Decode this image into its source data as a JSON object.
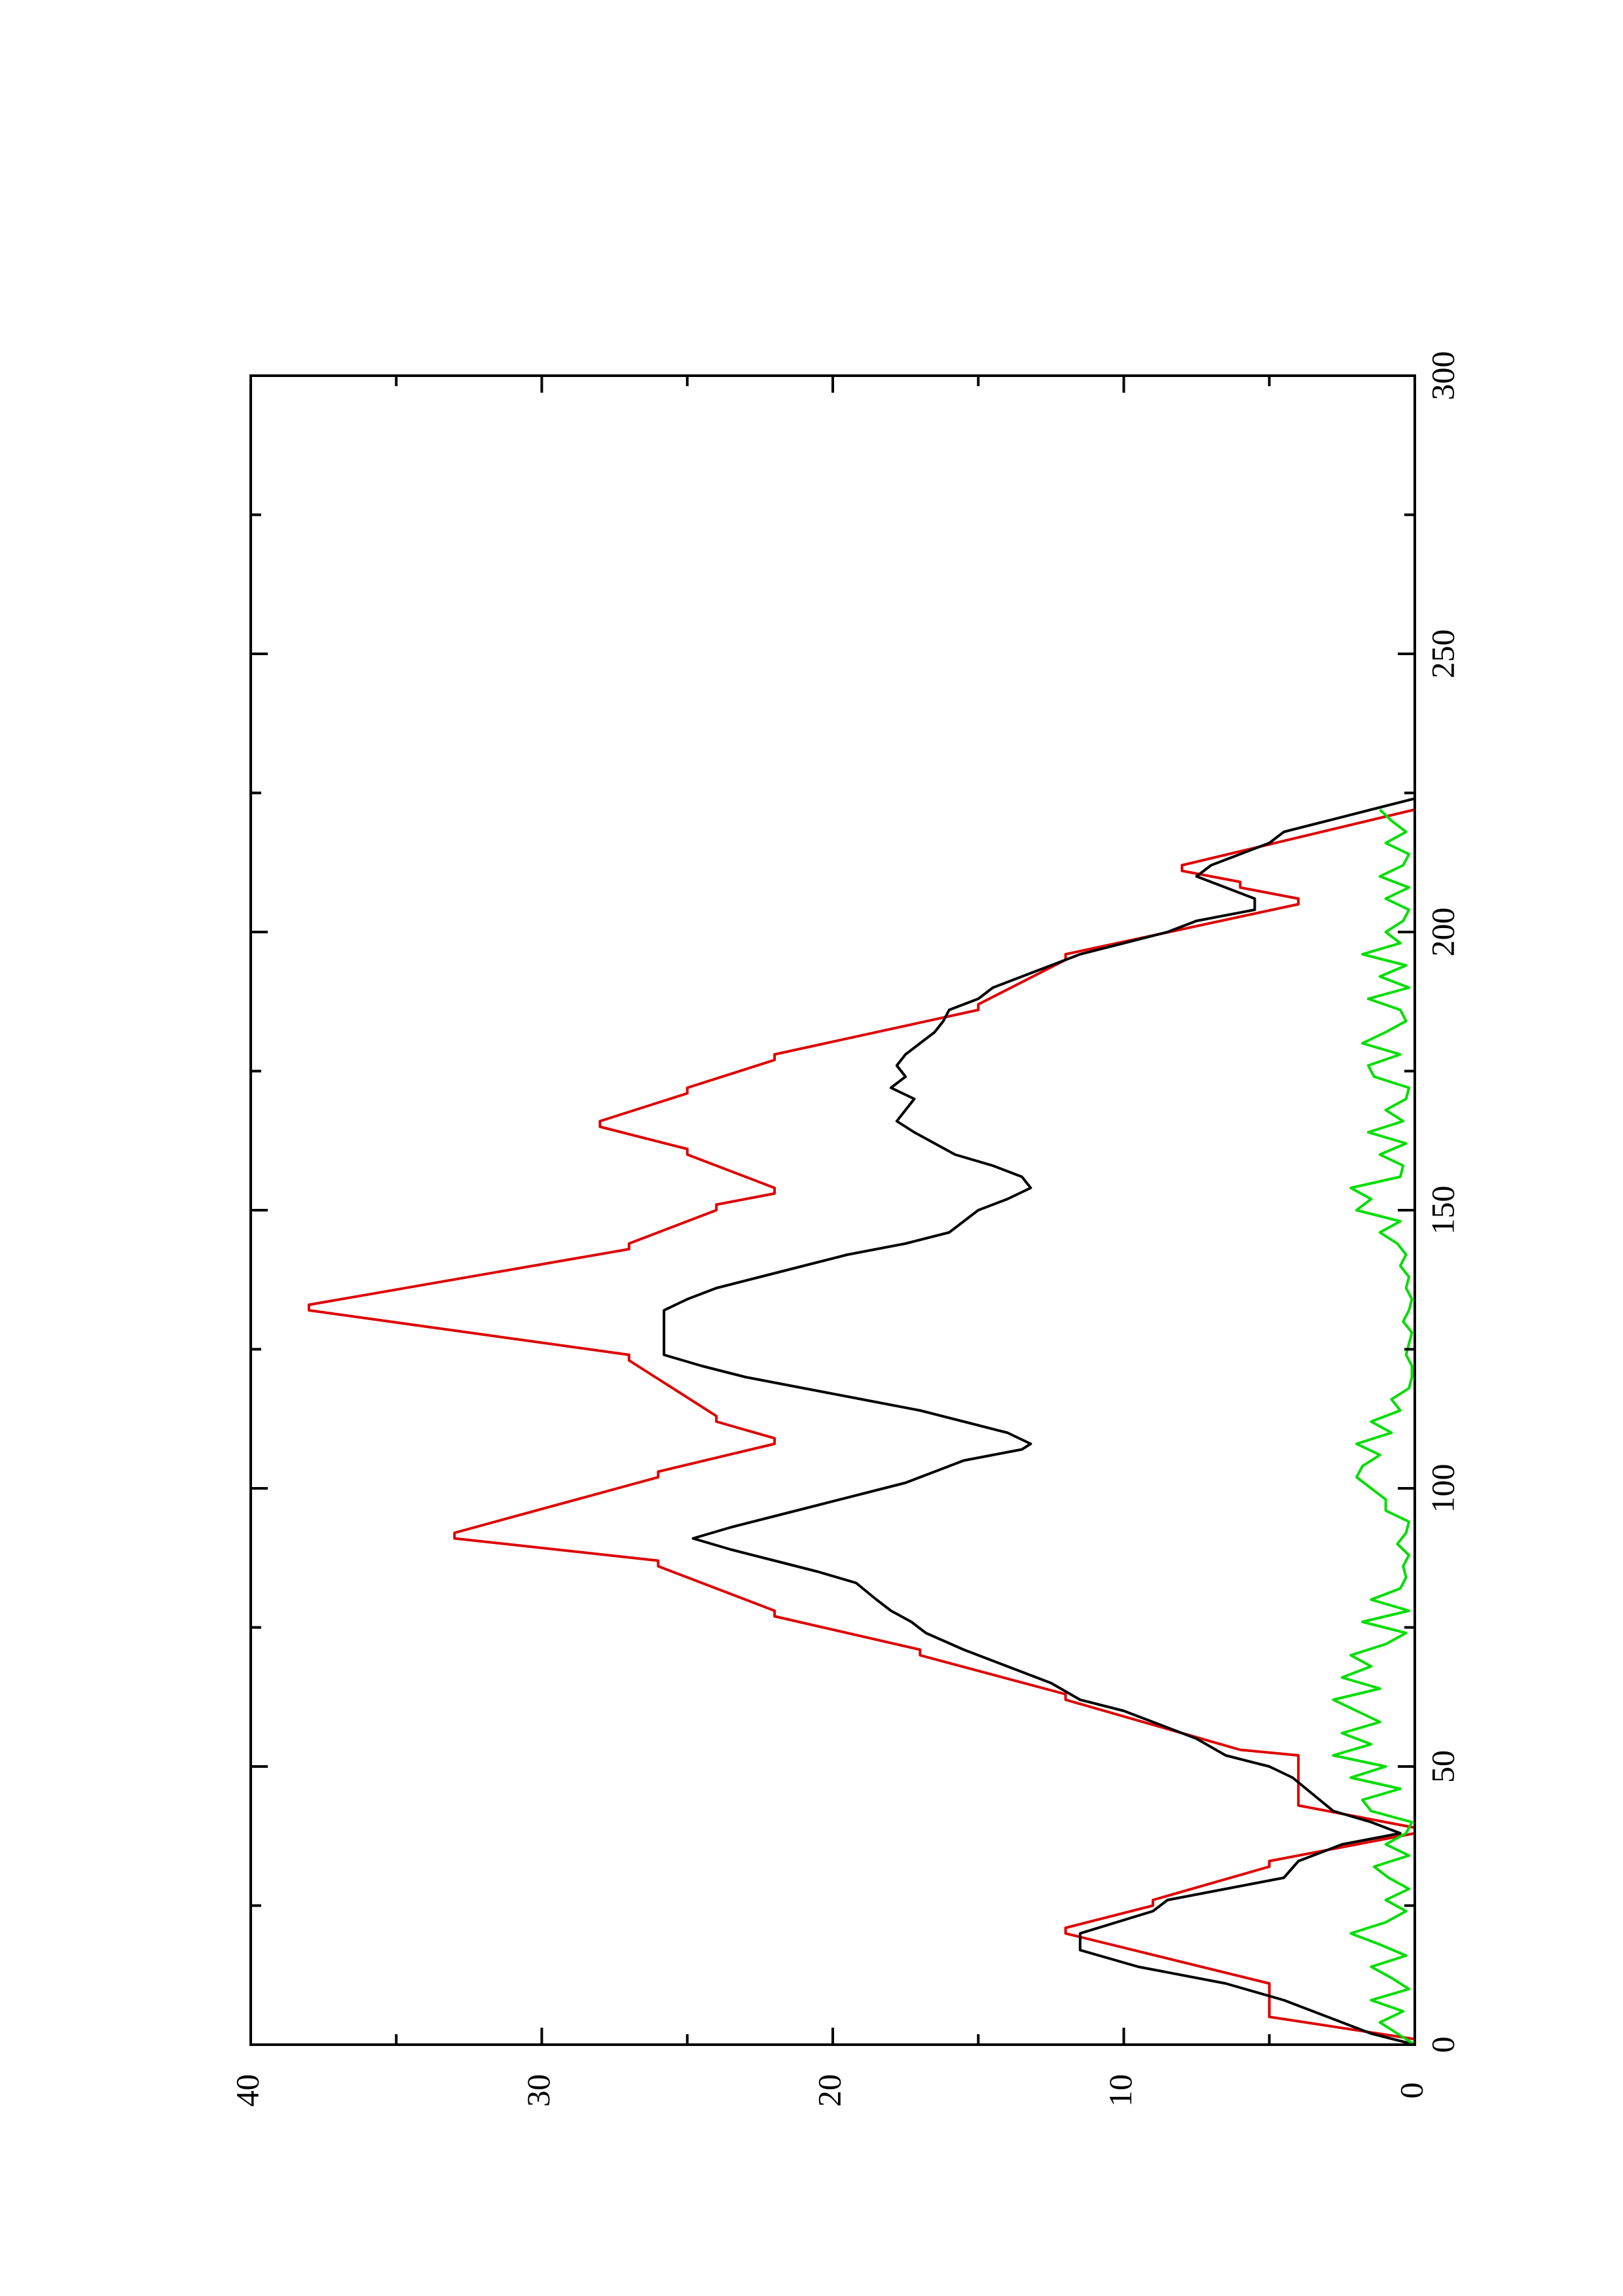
{
  "chart_data": {
    "type": "line",
    "orientation": "rotated-90-ccw",
    "title": "",
    "xlabel": "",
    "ylabel": "",
    "xlim": [
      0,
      300
    ],
    "ylim": [
      0,
      40
    ],
    "x_ticks": [
      0,
      50,
      100,
      150,
      200,
      250,
      300
    ],
    "x_tick_labels": [
      "0",
      "50",
      "100",
      "150",
      "200",
      "250",
      "300"
    ],
    "x_minor_ticks": [
      25,
      75,
      125,
      175,
      225,
      275
    ],
    "y_ticks": [
      0,
      10,
      20,
      30,
      40
    ],
    "y_tick_labels": [
      "0",
      "10",
      "20",
      "30",
      "40"
    ],
    "y_minor_ticks": [
      5,
      15,
      25,
      35
    ],
    "grid": false,
    "legend": "none",
    "colors": {
      "red": "#dd0000",
      "black": "#000000",
      "green": "#00dd00",
      "axis": "#000000"
    },
    "series": [
      {
        "color": "#dd0000",
        "x": [
          0,
          1,
          5,
          10,
          11,
          20,
          21,
          25,
          26,
          32,
          33,
          38,
          39,
          43,
          44,
          52,
          53,
          62,
          63,
          70,
          71,
          77,
          78,
          86,
          87,
          91,
          92,
          102,
          103,
          108,
          109,
          112,
          113,
          123,
          124,
          132,
          133,
          143,
          144,
          150,
          151,
          153,
          154,
          160,
          161,
          165,
          166,
          171,
          172,
          177,
          178,
          186,
          187,
          195,
          196,
          205,
          206,
          208,
          209,
          211,
          212,
          222,
          223,
          225
        ],
        "values": [
          0,
          0,
          5,
          5,
          5,
          12,
          12,
          9,
          9,
          5,
          5,
          0,
          0,
          4,
          4,
          4,
          6,
          12,
          12,
          17,
          17,
          22,
          22,
          26,
          26,
          33,
          33,
          26,
          26,
          22,
          22,
          24,
          24,
          27,
          27,
          38,
          38,
          27,
          27,
          24,
          24,
          22,
          22,
          25,
          25,
          28,
          28,
          25,
          25,
          22,
          22,
          15,
          15,
          12,
          12,
          4,
          4,
          6,
          6,
          8,
          8,
          0,
          0,
          0
        ]
      },
      {
        "color": "#000000",
        "x": [
          0,
          2,
          5,
          8,
          11,
          14,
          17,
          20,
          24,
          26,
          28,
          30,
          33,
          36,
          38,
          40,
          42,
          45,
          48,
          50,
          52,
          55,
          58,
          60,
          62,
          65,
          68,
          71,
          74,
          76,
          78,
          80,
          83,
          85,
          87,
          89,
          91,
          93,
          95,
          97,
          99,
          101,
          103,
          105,
          106,
          107,
          108,
          110,
          112,
          114,
          116,
          118,
          120,
          122,
          124,
          126,
          128,
          130,
          132,
          134,
          136,
          138,
          140,
          142,
          144,
          146,
          148,
          150,
          152,
          154,
          156,
          158,
          160,
          162,
          164,
          166,
          168,
          170,
          172,
          174,
          176,
          178,
          180,
          182,
          184,
          186,
          188,
          190,
          192,
          194,
          196,
          198,
          200,
          202,
          204,
          206,
          208,
          210,
          212,
          214,
          216,
          218,
          220,
          222,
          224
        ],
        "values": [
          0,
          1.5,
          3,
          4.5,
          6.5,
          9.5,
          11.5,
          11.5,
          9,
          8.5,
          6.5,
          4.5,
          4,
          2.5,
          0.5,
          1.5,
          2.8,
          3.5,
          4.2,
          5,
          6.5,
          7.5,
          9,
          10,
          11.5,
          12.5,
          14,
          15.5,
          16.8,
          17.3,
          18,
          18.5,
          19.2,
          20.5,
          22,
          23.5,
          24.8,
          23.5,
          22,
          20.5,
          19,
          17.5,
          16.5,
          15.5,
          14.5,
          13.5,
          13.2,
          14,
          15.5,
          17,
          19,
          21,
          23,
          24.5,
          25.8,
          25.8,
          25.8,
          25.8,
          25.8,
          25,
          24,
          22.5,
          21,
          19.5,
          17.5,
          16,
          15.5,
          15,
          14,
          13.2,
          13.5,
          14.5,
          15.8,
          16.5,
          17.2,
          17.8,
          17.5,
          17.2,
          18,
          17.5,
          17.8,
          17.5,
          17,
          16.5,
          16.2,
          16,
          15,
          14.5,
          13.5,
          12.5,
          11.5,
          10,
          8.5,
          7.5,
          5.5,
          5.5,
          6.5,
          7.5,
          7,
          6,
          5,
          4.5,
          3,
          1.5,
          0
        ]
      },
      {
        "color": "#00dd00",
        "x": [
          0,
          2,
          4,
          6,
          8,
          10,
          12,
          14,
          16,
          18,
          20,
          22,
          24,
          26,
          28,
          30,
          32,
          34,
          36,
          38,
          40,
          42,
          44,
          46,
          48,
          50,
          52,
          54,
          56,
          58,
          60,
          62,
          64,
          66,
          68,
          70,
          72,
          74,
          76,
          78,
          80,
          82,
          84,
          86,
          88,
          90,
          92,
          94,
          96,
          98,
          100,
          102,
          104,
          106,
          108,
          110,
          112,
          114,
          116,
          118,
          120,
          122,
          124,
          126,
          128,
          130,
          132,
          134,
          136,
          138,
          140,
          142,
          144,
          146,
          148,
          150,
          152,
          154,
          156,
          158,
          160,
          162,
          164,
          166,
          168,
          170,
          172,
          174,
          176,
          178,
          180,
          182,
          184,
          186,
          188,
          190,
          192,
          194,
          196,
          198,
          200,
          202,
          204,
          206,
          208,
          210,
          212,
          214,
          216,
          218,
          220,
          222
        ],
        "values": [
          0,
          0.6,
          1.2,
          0.4,
          1.5,
          0.2,
          0.8,
          1.5,
          0.3,
          1.2,
          2.2,
          1.0,
          0.3,
          1.0,
          0.2,
          0.9,
          1.4,
          0.2,
          1.0,
          0.3,
          0.1,
          1.5,
          1.8,
          0.5,
          2.2,
          1.0,
          2.8,
          1.5,
          2.5,
          1.2,
          2.0,
          2.8,
          1.2,
          2.5,
          1.5,
          2.2,
          1.0,
          0.3,
          1.8,
          0.2,
          1.5,
          0.5,
          0.3,
          0.4,
          0.2,
          0.6,
          0.3,
          0.2,
          1.0,
          1.0,
          1.5,
          2.0,
          1.8,
          1.2,
          2.0,
          0.8,
          1.5,
          0.5,
          0.8,
          0.2,
          0.1,
          0.1,
          0.3,
          0.2,
          0.1,
          0.4,
          0.2,
          0.1,
          0.3,
          0.2,
          0.5,
          0.3,
          0.6,
          1.2,
          0.5,
          2.0,
          1.5,
          2.2,
          0.5,
          0.4,
          1.2,
          0.3,
          1.6,
          0.4,
          1.0,
          0.3,
          0.2,
          1.4,
          1.6,
          0.5,
          1.8,
          1.0,
          0.3,
          0.5,
          1.6,
          0.2,
          1.2,
          0.3,
          1.8,
          0.5,
          1.0,
          0.4,
          0.2,
          1.0,
          0.2,
          1.2,
          0.4,
          0.2,
          1.0,
          0.3,
          0.8,
          1.2
        ]
      }
    ]
  }
}
